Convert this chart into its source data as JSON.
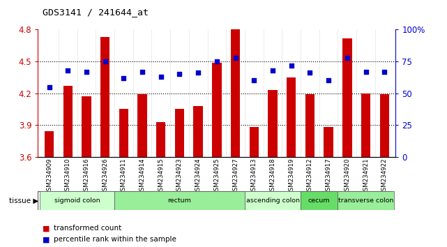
{
  "title": "GDS3141 / 241644_at",
  "samples": [
    "GSM234909",
    "GSM234910",
    "GSM234916",
    "GSM234926",
    "GSM234911",
    "GSM234914",
    "GSM234915",
    "GSM234923",
    "GSM234924",
    "GSM234925",
    "GSM234927",
    "GSM234913",
    "GSM234918",
    "GSM234919",
    "GSM234912",
    "GSM234917",
    "GSM234920",
    "GSM234921",
    "GSM234922"
  ],
  "bar_values": [
    3.84,
    4.27,
    4.17,
    4.73,
    4.05,
    4.19,
    3.93,
    4.05,
    4.08,
    4.49,
    4.8,
    3.88,
    4.23,
    4.35,
    4.19,
    3.88,
    4.72,
    4.2,
    4.19
  ],
  "dot_values": [
    55,
    68,
    67,
    75,
    62,
    67,
    63,
    65,
    66,
    75,
    78,
    60,
    68,
    72,
    66,
    60,
    78,
    67,
    67
  ],
  "ylim_left": [
    3.6,
    4.8
  ],
  "ylim_right": [
    0,
    100
  ],
  "yticks_left": [
    3.6,
    3.9,
    4.2,
    4.5,
    4.8
  ],
  "ytick_labels_left": [
    "3.6",
    "3.9",
    "4.2",
    "4.5",
    "4.8"
  ],
  "yticks_right": [
    0,
    25,
    50,
    75,
    100
  ],
  "ytick_labels_right": [
    "0",
    "25",
    "50",
    "75",
    "100%"
  ],
  "bar_color": "#CC0000",
  "dot_color": "#0000CC",
  "bar_width": 0.5,
  "tissue_groups": [
    {
      "label": "sigmoid colon",
      "start": 0,
      "end": 3,
      "color": "#ccffcc"
    },
    {
      "label": "rectum",
      "start": 4,
      "end": 10,
      "color": "#99ee99"
    },
    {
      "label": "ascending colon",
      "start": 11,
      "end": 13,
      "color": "#ccffcc"
    },
    {
      "label": "cecum",
      "start": 14,
      "end": 15,
      "color": "#66dd66"
    },
    {
      "label": "transverse colon",
      "start": 16,
      "end": 18,
      "color": "#99ee99"
    }
  ],
  "legend_items": [
    {
      "label": "transformed count",
      "color": "#CC0000"
    },
    {
      "label": "percentile rank within the sample",
      "color": "#0000CC"
    }
  ],
  "plot_bg_color": "#ffffff",
  "tick_label_color_left": "#CC0000",
  "tick_label_color_right": "#0000CC",
  "tissue_label": "tissue",
  "dotted_lines": [
    3.9,
    4.2,
    4.5
  ]
}
